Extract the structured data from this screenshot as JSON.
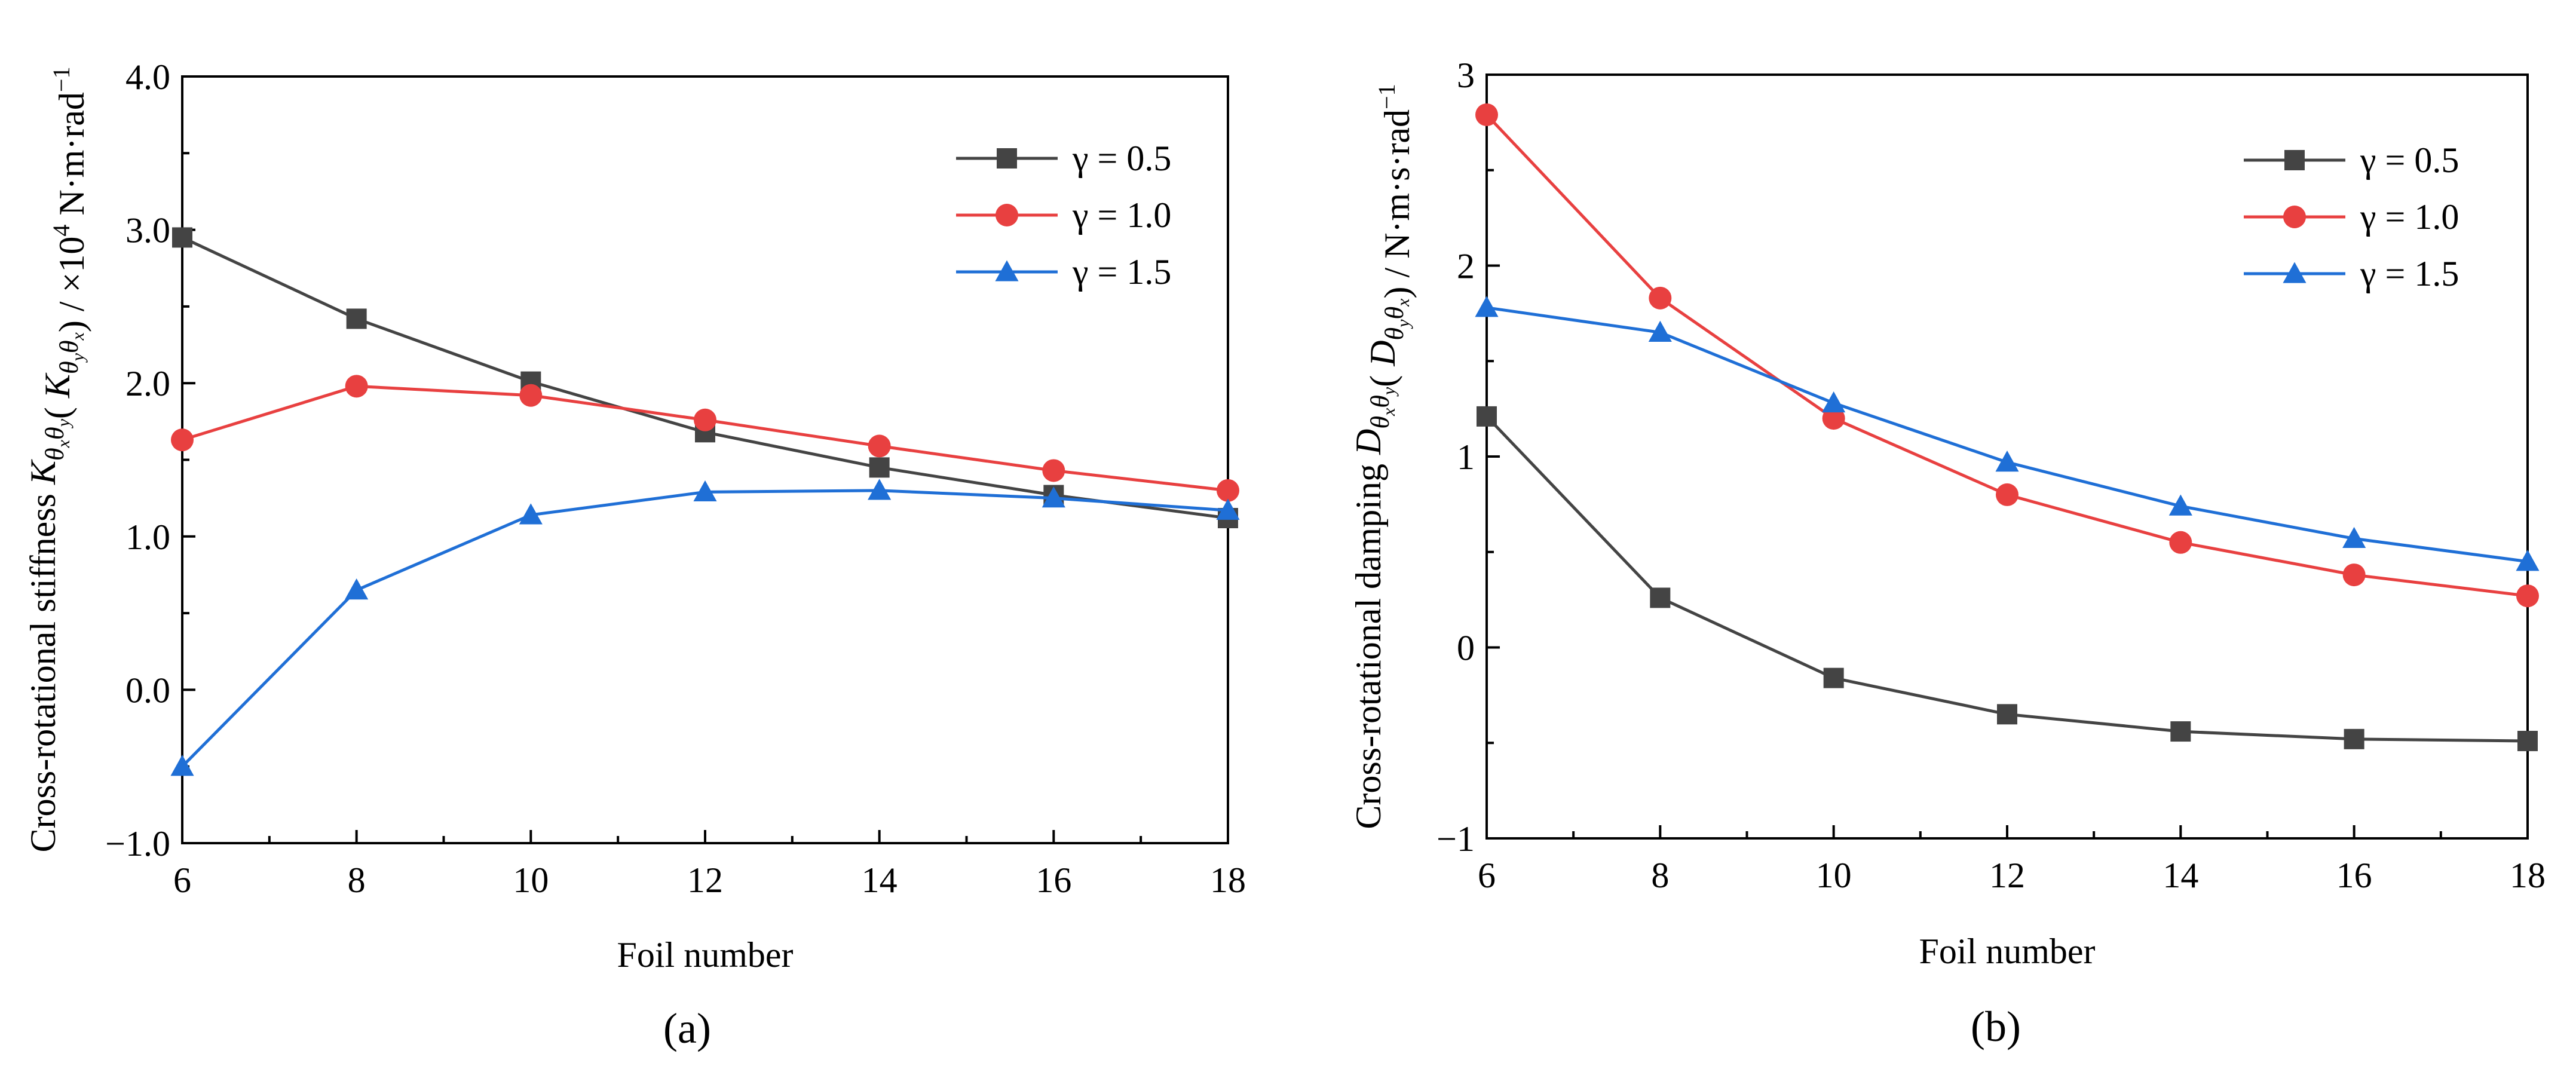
{
  "figure": {
    "panel_labels": [
      "(a)",
      "(b)"
    ]
  },
  "chart_data": [
    {
      "type": "line",
      "panel": "(a)",
      "x": [
        6,
        8,
        10,
        12,
        14,
        16,
        18
      ],
      "series": [
        {
          "name": "γ = 0.5",
          "color": "#444444",
          "marker": "square",
          "values": [
            2.95,
            2.42,
            2.01,
            1.68,
            1.45,
            1.27,
            1.12
          ]
        },
        {
          "name": "γ = 1.0",
          "color": "#e84040",
          "marker": "circle",
          "values": [
            1.63,
            1.98,
            1.92,
            1.76,
            1.59,
            1.43,
            1.3
          ]
        },
        {
          "name": "γ = 1.5",
          "color": "#1f6fd6",
          "marker": "triangle",
          "values": [
            -0.5,
            0.65,
            1.14,
            1.29,
            1.3,
            1.25,
            1.17
          ]
        }
      ],
      "xlabel": "Foil number",
      "ylabel": "Cross-rotational stiffness K_θxθy( K_θyθx) / ×10⁴ N·m·rad⁻¹",
      "ylabel_parts": [
        "Cross-rotational stiffness ",
        "K",
        "θ",
        "x",
        "θ",
        "y",
        "( ",
        "K",
        "θ",
        "y",
        "θ",
        "x",
        ") / ×10",
        "4",
        " N·m·rad",
        "−1"
      ],
      "xlim": [
        6,
        18
      ],
      "ylim": [
        -1.0,
        4.0
      ],
      "xticks": [
        6,
        8,
        10,
        12,
        14,
        16,
        18
      ],
      "xtick_labels": [
        "6",
        "8",
        "10",
        "12",
        "14",
        "16",
        "18"
      ],
      "yticks": [
        -1.0,
        0.0,
        1.0,
        2.0,
        3.0,
        4.0
      ],
      "ytick_labels": [
        "−1.0",
        "0.0",
        "1.0",
        "2.0",
        "3.0",
        "4.0"
      ],
      "grid": false,
      "legend": "top-right"
    },
    {
      "type": "line",
      "panel": "(b)",
      "x": [
        6,
        8,
        10,
        12,
        14,
        16,
        18
      ],
      "series": [
        {
          "name": "γ = 0.5",
          "color": "#444444",
          "marker": "square",
          "values": [
            1.21,
            0.26,
            -0.16,
            -0.35,
            -0.44,
            -0.48,
            -0.49
          ]
        },
        {
          "name": "γ = 1.0",
          "color": "#e84040",
          "marker": "circle",
          "values": [
            2.79,
            1.83,
            1.2,
            0.8,
            0.55,
            0.38,
            0.27
          ]
        },
        {
          "name": "γ = 1.5",
          "color": "#1f6fd6",
          "marker": "triangle",
          "values": [
            1.78,
            1.65,
            1.28,
            0.97,
            0.74,
            0.57,
            0.45
          ]
        }
      ],
      "xlabel": "Foil number",
      "ylabel": "Cross-rotational damping D_θxθy( D_θyθx) / N·m·s·rad⁻¹",
      "ylabel_parts": [
        "Cross-rotational damping ",
        "D",
        "θ",
        "x",
        "θ",
        "y",
        "( ",
        "D",
        "θ",
        "y",
        "θ",
        "x",
        ") / N·m·s·rad",
        "−1"
      ],
      "xlim": [
        6,
        18
      ],
      "ylim": [
        -1,
        3
      ],
      "xticks": [
        6,
        8,
        10,
        12,
        14,
        16,
        18
      ],
      "xtick_labels": [
        "6",
        "8",
        "10",
        "12",
        "14",
        "16",
        "18"
      ],
      "yticks": [
        -1,
        0,
        1,
        2,
        3
      ],
      "ytick_labels": [
        "−1",
        "0",
        "1",
        "2",
        "3"
      ],
      "grid": false,
      "legend": "top-right"
    }
  ]
}
